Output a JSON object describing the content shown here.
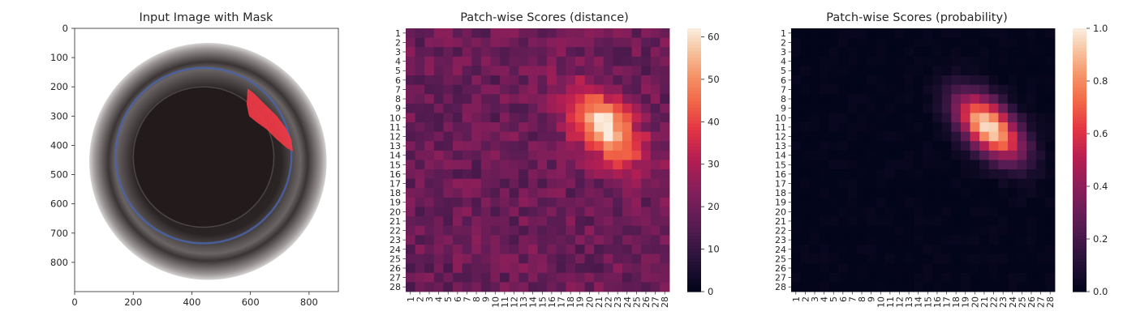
{
  "chart_data": [
    {
      "type": "image",
      "title": "Input Image with Mask",
      "xticks": [
        "0",
        "200",
        "400",
        "600",
        "800"
      ],
      "yticks": [
        "0",
        "100",
        "200",
        "300",
        "400",
        "500",
        "600",
        "700",
        "800"
      ],
      "xlim": [
        0,
        900
      ],
      "ylim": [
        900,
        0
      ],
      "image": {
        "outer_ring": {
          "cx": 455,
          "cy": 455,
          "r": 405
        },
        "blue_ring": {
          "cx": 440,
          "cy": 435,
          "r": 300
        },
        "inner_dark": {
          "cx": 440,
          "cy": 440,
          "r": 240
        },
        "mask_polygon": [
          [
            590,
            205
          ],
          [
            615,
            225
          ],
          [
            650,
            260
          ],
          [
            690,
            300
          ],
          [
            720,
            340
          ],
          [
            740,
            380
          ],
          [
            745,
            420
          ],
          [
            725,
            410
          ],
          [
            690,
            380
          ],
          [
            655,
            345
          ],
          [
            620,
            320
          ],
          [
            595,
            300
          ],
          [
            587,
            260
          ]
        ]
      },
      "colors": {
        "mask": "#f03a47",
        "ring": "#3b3434",
        "blue": "#4a63a8",
        "center": "#231b1b"
      }
    },
    {
      "type": "heatmap",
      "title": "Patch-wise Scores (distance)",
      "x": [
        "1",
        "2",
        "3",
        "4",
        "5",
        "6",
        "7",
        "8",
        "9",
        "10",
        "11",
        "12",
        "13",
        "14",
        "15",
        "16",
        "17",
        "18",
        "19",
        "20",
        "21",
        "22",
        "23",
        "24",
        "25",
        "26",
        "27",
        "28"
      ],
      "y": [
        "1",
        "2",
        "3",
        "4",
        "5",
        "6",
        "7",
        "8",
        "9",
        "10",
        "11",
        "12",
        "13",
        "14",
        "15",
        "16",
        "17",
        "18",
        "19",
        "20",
        "21",
        "22",
        "23",
        "24",
        "25",
        "26",
        "27",
        "28"
      ],
      "zlim": [
        0,
        62
      ],
      "colorbar_ticks": [
        "0",
        "10",
        "20",
        "30",
        "40",
        "50",
        "60"
      ],
      "background_value": 19,
      "hotspot": {
        "center_row": 11,
        "center_col": 21.5,
        "peak": 62,
        "sigma_major": 3.4,
        "sigma_minor": 1.9,
        "angle_deg": 45
      },
      "colormap": "rocket"
    },
    {
      "type": "heatmap",
      "title": "Patch-wise Scores (probability)",
      "x": [
        "1",
        "2",
        "3",
        "4",
        "5",
        "6",
        "7",
        "8",
        "9",
        "10",
        "11",
        "12",
        "13",
        "14",
        "15",
        "16",
        "17",
        "18",
        "19",
        "20",
        "21",
        "22",
        "23",
        "24",
        "25",
        "26",
        "27",
        "28"
      ],
      "y": [
        "1",
        "2",
        "3",
        "4",
        "5",
        "6",
        "7",
        "8",
        "9",
        "10",
        "11",
        "12",
        "13",
        "14",
        "15",
        "16",
        "17",
        "18",
        "19",
        "20",
        "21",
        "22",
        "23",
        "24",
        "25",
        "26",
        "27",
        "28"
      ],
      "zlim": [
        0,
        1.0
      ],
      "colorbar_ticks": [
        "0.0",
        "0.2",
        "0.4",
        "0.6",
        "0.8",
        "1.0"
      ],
      "background_value": 0,
      "hotspot": {
        "center_row": 11,
        "center_col": 21.5,
        "peak": 1.0,
        "sigma_major": 3.0,
        "sigma_minor": 1.6,
        "angle_deg": 45
      },
      "colormap": "rocket"
    }
  ]
}
